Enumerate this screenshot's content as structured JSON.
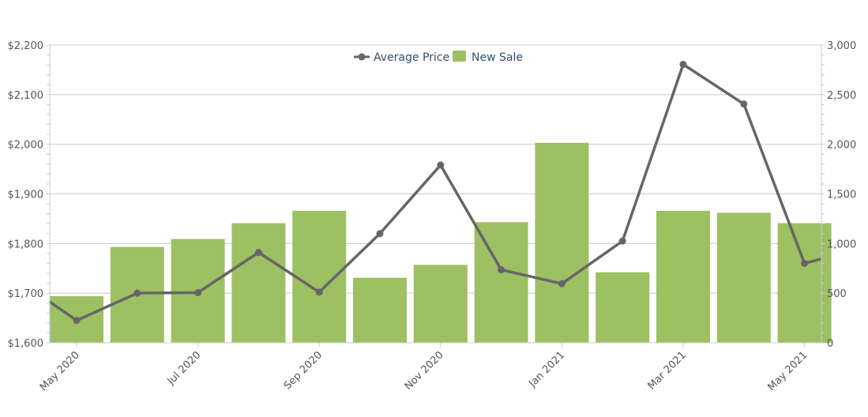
{
  "chart_data": {
    "type": "bar+line",
    "title": "",
    "categories": [
      "May 2020",
      "Jun 2020",
      "Jul 2020",
      "Aug 2020",
      "Sep 2020",
      "Oct 2020",
      "Nov 2020",
      "Dec 2020",
      "Jan 2021",
      "Feb 2021",
      "Mar 2021",
      "Apr 2021",
      "May 2021"
    ],
    "x_tick_labels": [
      "May 2020",
      "Jul 2020",
      "Sep 2020",
      "Nov 2020",
      "Jan 2021",
      "Mar 2021",
      "May 2021"
    ],
    "series": [
      {
        "name": "New Sale",
        "kind": "bar",
        "axis": "right",
        "color": "#9dc062",
        "values": [
          470,
          965,
          1045,
          1205,
          1330,
          655,
          785,
          1215,
          2015,
          710,
          1330,
          1310,
          1205
        ]
      },
      {
        "name": "Average Price",
        "kind": "line",
        "axis": "left",
        "color": "#666666",
        "leading_value": 1730,
        "trailing_value": 1792,
        "values": [
          1645,
          1700,
          1701,
          1782,
          1702,
          1820,
          1958,
          1747,
          1719,
          1805,
          2161,
          2081,
          1760
        ]
      }
    ],
    "y_left": {
      "ylim": [
        1600,
        2200
      ],
      "tick_labels": [
        "$1,600",
        "$1,700",
        "$1,800",
        "$1,900",
        "$2,000",
        "$2,100",
        "$2,200"
      ]
    },
    "y_right": {
      "ylim": [
        0,
        3000
      ],
      "tick_labels": [
        "0",
        "500",
        "1,000",
        "1,500",
        "2,000",
        "2,500",
        "3,000"
      ]
    },
    "legend": {
      "position": "top-center",
      "entries": [
        "Average Price",
        "New Sale"
      ]
    },
    "grid": true
  }
}
